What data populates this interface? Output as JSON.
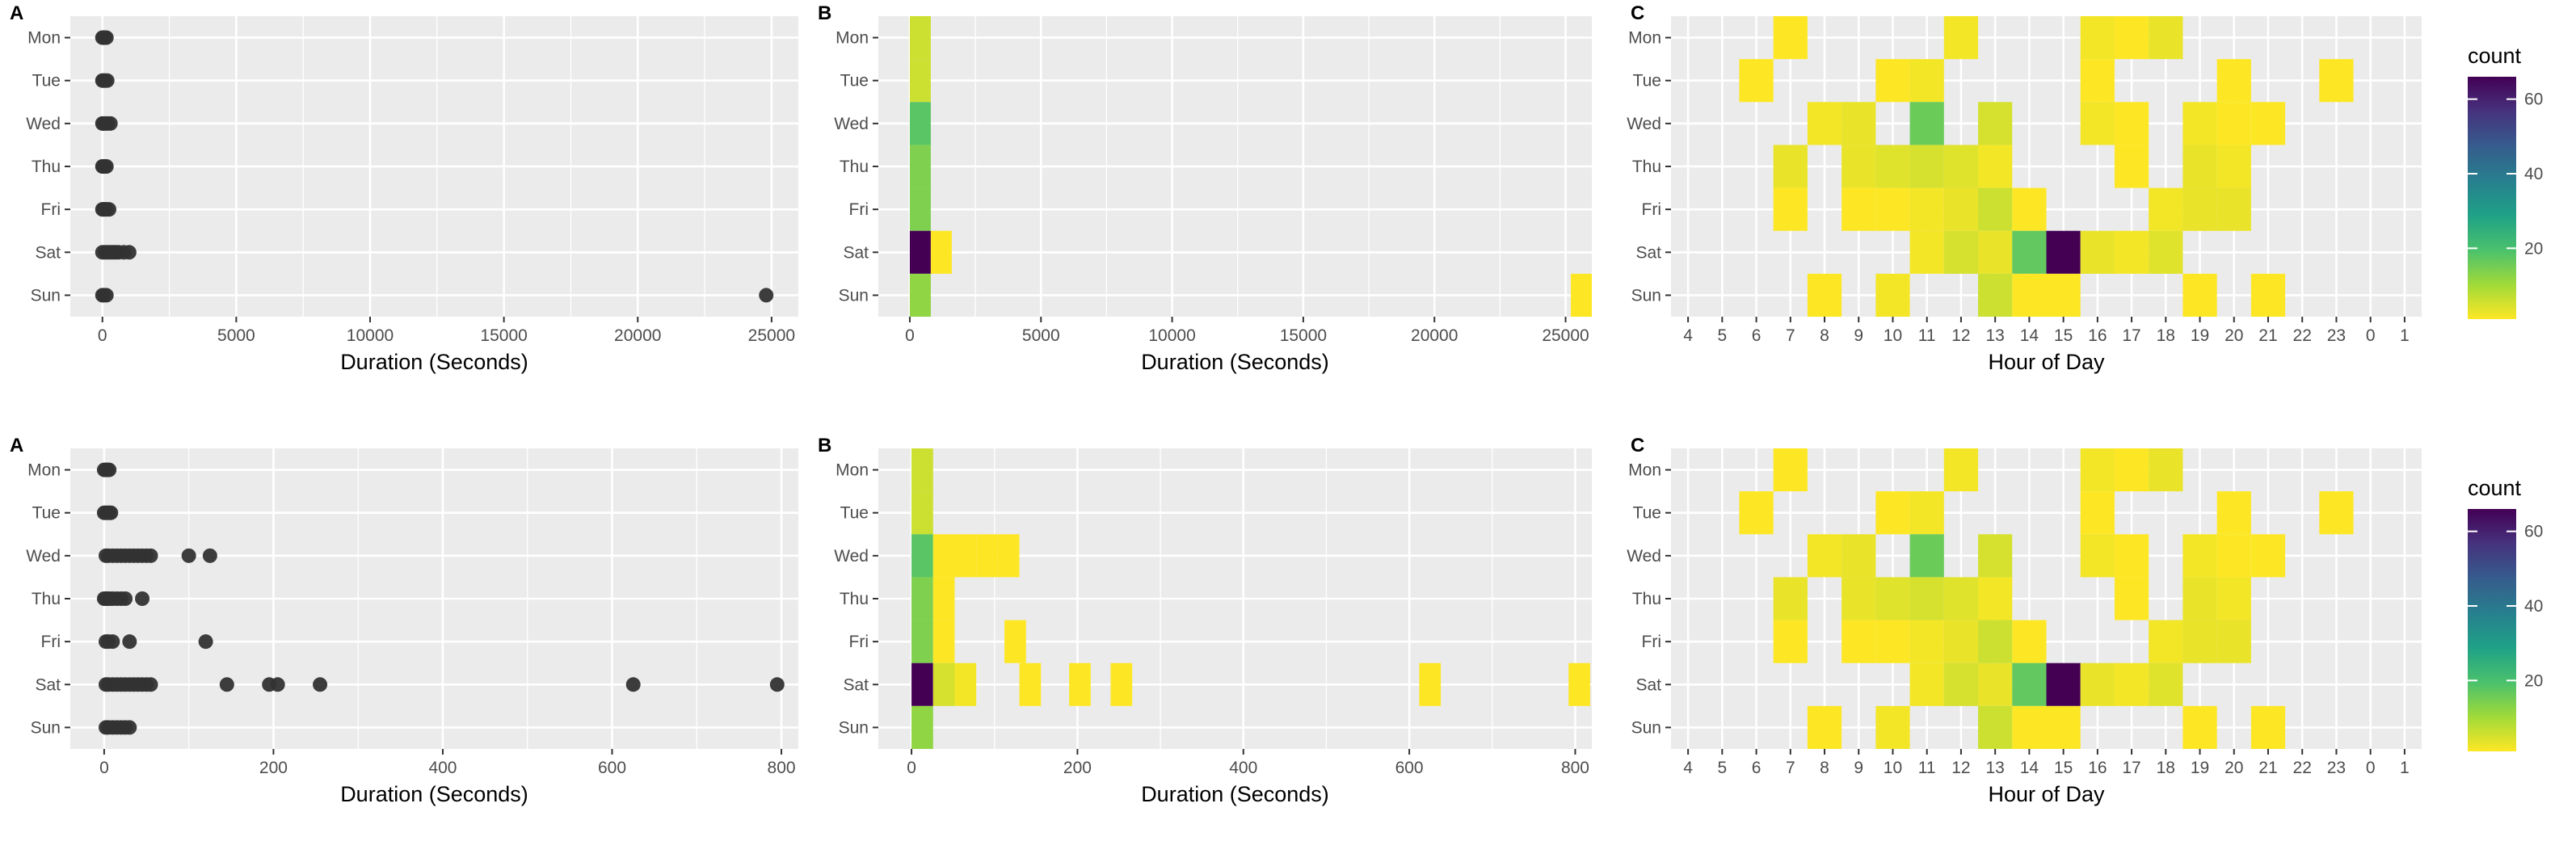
{
  "days": [
    "Mon",
    "Tue",
    "Wed",
    "Thu",
    "Fri",
    "Sat",
    "Sun"
  ],
  "legend": {
    "title": "count",
    "ticks": [
      20,
      40,
      60
    ],
    "range": [
      1,
      66
    ],
    "palette": [
      "#fde725",
      "#a0da39",
      "#4ac16d",
      "#1fa187",
      "#277f8e",
      "#365c8d",
      "#46327e",
      "#440154"
    ]
  },
  "chart_data": [
    {
      "panel": "A",
      "type": "scatter",
      "xlabel": "Duration (Seconds)",
      "ylabel": "",
      "xlim": [
        -1200,
        26000
      ],
      "xticks": [
        0,
        5000,
        10000,
        15000,
        20000,
        25000
      ],
      "points": [
        {
          "day": "Mon",
          "x": [
            0,
            30,
            80,
            150
          ]
        },
        {
          "day": "Tue",
          "x": [
            0,
            40,
            100,
            180
          ]
        },
        {
          "day": "Wed",
          "x": [
            0,
            50,
            120,
            200,
            300
          ]
        },
        {
          "day": "Thu",
          "x": [
            0,
            30,
            80,
            150
          ]
        },
        {
          "day": "Fri",
          "x": [
            0,
            40,
            100,
            150,
            250
          ]
        },
        {
          "day": "Sat",
          "x": [
            0,
            100,
            200,
            300,
            400,
            500,
            600,
            800,
            1000
          ]
        },
        {
          "day": "Sun",
          "x": [
            0,
            50,
            150,
            24800
          ]
        }
      ]
    },
    {
      "panel": "B",
      "type": "heatmap",
      "xlabel": "Duration (Seconds)",
      "ylabel": "",
      "xlim": [
        -1200,
        26000
      ],
      "xticks": [
        0,
        5000,
        10000,
        15000,
        20000,
        25000
      ],
      "binwidth": 800,
      "tiles": [
        {
          "day": "Mon",
          "x": 0,
          "count": 6
        },
        {
          "day": "Tue",
          "x": 0,
          "count": 6
        },
        {
          "day": "Wed",
          "x": 0,
          "count": 18
        },
        {
          "day": "Thu",
          "x": 0,
          "count": 14
        },
        {
          "day": "Fri",
          "x": 0,
          "count": 14
        },
        {
          "day": "Sat",
          "x": 0,
          "count": 66
        },
        {
          "day": "Sat",
          "x": 800,
          "count": 1
        },
        {
          "day": "Sun",
          "x": 0,
          "count": 12
        },
        {
          "day": "Sun",
          "x": 25200,
          "count": 1
        }
      ]
    },
    {
      "panel": "C",
      "type": "heatmap",
      "xlabel": "Hour of Day",
      "ylabel": "",
      "xcategories": [
        "4",
        "5",
        "6",
        "7",
        "8",
        "9",
        "10",
        "11",
        "12",
        "13",
        "14",
        "15",
        "16",
        "17",
        "18",
        "19",
        "20",
        "21",
        "22",
        "23",
        "0",
        "1"
      ],
      "tiles": [
        {
          "day": "Mon",
          "hour": "7",
          "count": 1
        },
        {
          "day": "Mon",
          "hour": "12",
          "count": 2
        },
        {
          "day": "Mon",
          "hour": "16",
          "count": 2
        },
        {
          "day": "Mon",
          "hour": "17",
          "count": 1
        },
        {
          "day": "Mon",
          "hour": "18",
          "count": 3
        },
        {
          "day": "Tue",
          "hour": "6",
          "count": 1
        },
        {
          "day": "Tue",
          "hour": "10",
          "count": 1
        },
        {
          "day": "Tue",
          "hour": "11",
          "count": 2
        },
        {
          "day": "Tue",
          "hour": "16",
          "count": 1
        },
        {
          "day": "Tue",
          "hour": "20",
          "count": 1
        },
        {
          "day": "Tue",
          "hour": "23",
          "count": 1
        },
        {
          "day": "Wed",
          "hour": "8",
          "count": 2
        },
        {
          "day": "Wed",
          "hour": "9",
          "count": 3
        },
        {
          "day": "Wed",
          "hour": "11",
          "count": 16
        },
        {
          "day": "Wed",
          "hour": "13",
          "count": 5
        },
        {
          "day": "Wed",
          "hour": "16",
          "count": 2
        },
        {
          "day": "Wed",
          "hour": "17",
          "count": 1
        },
        {
          "day": "Wed",
          "hour": "19",
          "count": 2
        },
        {
          "day": "Wed",
          "hour": "20",
          "count": 1
        },
        {
          "day": "Wed",
          "hour": "21",
          "count": 1
        },
        {
          "day": "Thu",
          "hour": "7",
          "count": 3
        },
        {
          "day": "Thu",
          "hour": "9",
          "count": 3
        },
        {
          "day": "Thu",
          "hour": "10",
          "count": 4
        },
        {
          "day": "Thu",
          "hour": "11",
          "count": 5
        },
        {
          "day": "Thu",
          "hour": "12",
          "count": 4
        },
        {
          "day": "Thu",
          "hour": "13",
          "count": 2
        },
        {
          "day": "Thu",
          "hour": "17",
          "count": 1
        },
        {
          "day": "Thu",
          "hour": "19",
          "count": 3
        },
        {
          "day": "Thu",
          "hour": "20",
          "count": 2
        },
        {
          "day": "Fri",
          "hour": "7",
          "count": 1
        },
        {
          "day": "Fri",
          "hour": "9",
          "count": 1
        },
        {
          "day": "Fri",
          "hour": "10",
          "count": 1
        },
        {
          "day": "Fri",
          "hour": "11",
          "count": 2
        },
        {
          "day": "Fri",
          "hour": "12",
          "count": 3
        },
        {
          "day": "Fri",
          "hour": "13",
          "count": 6
        },
        {
          "day": "Fri",
          "hour": "14",
          "count": 1
        },
        {
          "day": "Fri",
          "hour": "18",
          "count": 2
        },
        {
          "day": "Fri",
          "hour": "19",
          "count": 3
        },
        {
          "day": "Fri",
          "hour": "20",
          "count": 3
        },
        {
          "day": "Sat",
          "hour": "11",
          "count": 2
        },
        {
          "day": "Sat",
          "hour": "12",
          "count": 5
        },
        {
          "day": "Sat",
          "hour": "13",
          "count": 3
        },
        {
          "day": "Sat",
          "hour": "14",
          "count": 17
        },
        {
          "day": "Sat",
          "hour": "15",
          "count": 66
        },
        {
          "day": "Sat",
          "hour": "16",
          "count": 3
        },
        {
          "day": "Sat",
          "hour": "17",
          "count": 2
        },
        {
          "day": "Sat",
          "hour": "18",
          "count": 4
        },
        {
          "day": "Sun",
          "hour": "8",
          "count": 1
        },
        {
          "day": "Sun",
          "hour": "10",
          "count": 2
        },
        {
          "day": "Sun",
          "hour": "13",
          "count": 6
        },
        {
          "day": "Sun",
          "hour": "14",
          "count": 1
        },
        {
          "day": "Sun",
          "hour": "15",
          "count": 1
        },
        {
          "day": "Sun",
          "hour": "19",
          "count": 1
        },
        {
          "day": "Sun",
          "hour": "21",
          "count": 1
        }
      ]
    },
    {
      "panel": "A",
      "type": "scatter",
      "xlabel": "Duration (Seconds)",
      "ylabel": "",
      "xlim": [
        -40,
        820
      ],
      "xticks": [
        0,
        200,
        400,
        600,
        800
      ],
      "points": [
        {
          "day": "Mon",
          "x": [
            0,
            2,
            4,
            6
          ]
        },
        {
          "day": "Tue",
          "x": [
            0,
            2,
            4,
            6,
            8
          ]
        },
        {
          "day": "Wed",
          "x": [
            2,
            5,
            10,
            15,
            20,
            25,
            30,
            35,
            40,
            45,
            50,
            55,
            100,
            125
          ]
        },
        {
          "day": "Thu",
          "x": [
            0,
            2,
            4,
            6,
            10,
            15,
            20,
            25,
            45
          ]
        },
        {
          "day": "Fri",
          "x": [
            2,
            5,
            10,
            30,
            120
          ]
        },
        {
          "day": "Sat",
          "x": [
            2,
            5,
            10,
            15,
            20,
            25,
            30,
            35,
            40,
            45,
            50,
            55,
            145,
            195,
            205,
            255,
            625,
            795
          ]
        },
        {
          "day": "Sun",
          "x": [
            2,
            5,
            10,
            15,
            20,
            25,
            30
          ]
        }
      ]
    },
    {
      "panel": "B",
      "type": "heatmap",
      "xlabel": "Duration (Seconds)",
      "ylabel": "",
      "xlim": [
        -40,
        820
      ],
      "xticks": [
        0,
        200,
        400,
        600,
        800
      ],
      "binwidth": 26,
      "tiles": [
        {
          "day": "Mon",
          "x": 0,
          "count": 6
        },
        {
          "day": "Tue",
          "x": 0,
          "count": 6
        },
        {
          "day": "Wed",
          "x": 0,
          "count": 18
        },
        {
          "day": "Wed",
          "x": 26,
          "count": 1
        },
        {
          "day": "Wed",
          "x": 52,
          "count": 1
        },
        {
          "day": "Wed",
          "x": 78,
          "count": 1
        },
        {
          "day": "Wed",
          "x": 104,
          "count": 1
        },
        {
          "day": "Thu",
          "x": 0,
          "count": 14
        },
        {
          "day": "Thu",
          "x": 26,
          "count": 1
        },
        {
          "day": "Fri",
          "x": 0,
          "count": 14
        },
        {
          "day": "Fri",
          "x": 26,
          "count": 1
        },
        {
          "day": "Fri",
          "x": 112,
          "count": 1
        },
        {
          "day": "Sat",
          "x": 0,
          "count": 66
        },
        {
          "day": "Sat",
          "x": 26,
          "count": 5
        },
        {
          "day": "Sat",
          "x": 52,
          "count": 2
        },
        {
          "day": "Sat",
          "x": 130,
          "count": 1
        },
        {
          "day": "Sat",
          "x": 190,
          "count": 1
        },
        {
          "day": "Sat",
          "x": 240,
          "count": 1
        },
        {
          "day": "Sat",
          "x": 612,
          "count": 1
        },
        {
          "day": "Sat",
          "x": 792,
          "count": 1
        },
        {
          "day": "Sun",
          "x": 0,
          "count": 12
        }
      ]
    },
    {
      "panel": "C",
      "type": "heatmap",
      "xlabel": "Hour of Day",
      "ylabel": "",
      "xcategories": [
        "4",
        "5",
        "6",
        "7",
        "8",
        "9",
        "10",
        "11",
        "12",
        "13",
        "14",
        "15",
        "16",
        "17",
        "18",
        "19",
        "20",
        "21",
        "22",
        "23",
        "0",
        "1"
      ],
      "tiles": [
        {
          "day": "Mon",
          "hour": "7",
          "count": 1
        },
        {
          "day": "Mon",
          "hour": "12",
          "count": 2
        },
        {
          "day": "Mon",
          "hour": "16",
          "count": 2
        },
        {
          "day": "Mon",
          "hour": "17",
          "count": 1
        },
        {
          "day": "Mon",
          "hour": "18",
          "count": 3
        },
        {
          "day": "Tue",
          "hour": "6",
          "count": 1
        },
        {
          "day": "Tue",
          "hour": "10",
          "count": 1
        },
        {
          "day": "Tue",
          "hour": "11",
          "count": 2
        },
        {
          "day": "Tue",
          "hour": "16",
          "count": 1
        },
        {
          "day": "Tue",
          "hour": "20",
          "count": 1
        },
        {
          "day": "Tue",
          "hour": "23",
          "count": 1
        },
        {
          "day": "Wed",
          "hour": "8",
          "count": 2
        },
        {
          "day": "Wed",
          "hour": "9",
          "count": 3
        },
        {
          "day": "Wed",
          "hour": "11",
          "count": 16
        },
        {
          "day": "Wed",
          "hour": "13",
          "count": 5
        },
        {
          "day": "Wed",
          "hour": "16",
          "count": 2
        },
        {
          "day": "Wed",
          "hour": "17",
          "count": 1
        },
        {
          "day": "Wed",
          "hour": "19",
          "count": 2
        },
        {
          "day": "Wed",
          "hour": "20",
          "count": 1
        },
        {
          "day": "Wed",
          "hour": "21",
          "count": 1
        },
        {
          "day": "Thu",
          "hour": "7",
          "count": 3
        },
        {
          "day": "Thu",
          "hour": "9",
          "count": 3
        },
        {
          "day": "Thu",
          "hour": "10",
          "count": 4
        },
        {
          "day": "Thu",
          "hour": "11",
          "count": 5
        },
        {
          "day": "Thu",
          "hour": "12",
          "count": 4
        },
        {
          "day": "Thu",
          "hour": "13",
          "count": 2
        },
        {
          "day": "Thu",
          "hour": "17",
          "count": 1
        },
        {
          "day": "Thu",
          "hour": "19",
          "count": 3
        },
        {
          "day": "Thu",
          "hour": "20",
          "count": 2
        },
        {
          "day": "Fri",
          "hour": "7",
          "count": 1
        },
        {
          "day": "Fri",
          "hour": "9",
          "count": 1
        },
        {
          "day": "Fri",
          "hour": "10",
          "count": 1
        },
        {
          "day": "Fri",
          "hour": "11",
          "count": 2
        },
        {
          "day": "Fri",
          "hour": "12",
          "count": 3
        },
        {
          "day": "Fri",
          "hour": "13",
          "count": 6
        },
        {
          "day": "Fri",
          "hour": "14",
          "count": 1
        },
        {
          "day": "Fri",
          "hour": "18",
          "count": 2
        },
        {
          "day": "Fri",
          "hour": "19",
          "count": 3
        },
        {
          "day": "Fri",
          "hour": "20",
          "count": 3
        },
        {
          "day": "Sat",
          "hour": "11",
          "count": 2
        },
        {
          "day": "Sat",
          "hour": "12",
          "count": 5
        },
        {
          "day": "Sat",
          "hour": "13",
          "count": 3
        },
        {
          "day": "Sat",
          "hour": "14",
          "count": 17
        },
        {
          "day": "Sat",
          "hour": "15",
          "count": 66
        },
        {
          "day": "Sat",
          "hour": "16",
          "count": 3
        },
        {
          "day": "Sat",
          "hour": "17",
          "count": 2
        },
        {
          "day": "Sat",
          "hour": "18",
          "count": 4
        },
        {
          "day": "Sun",
          "hour": "8",
          "count": 1
        },
        {
          "day": "Sun",
          "hour": "10",
          "count": 2
        },
        {
          "day": "Sun",
          "hour": "13",
          "count": 6
        },
        {
          "day": "Sun",
          "hour": "14",
          "count": 1
        },
        {
          "day": "Sun",
          "hour": "15",
          "count": 1
        },
        {
          "day": "Sun",
          "hour": "19",
          "count": 1
        },
        {
          "day": "Sun",
          "hour": "21",
          "count": 1
        }
      ]
    }
  ]
}
